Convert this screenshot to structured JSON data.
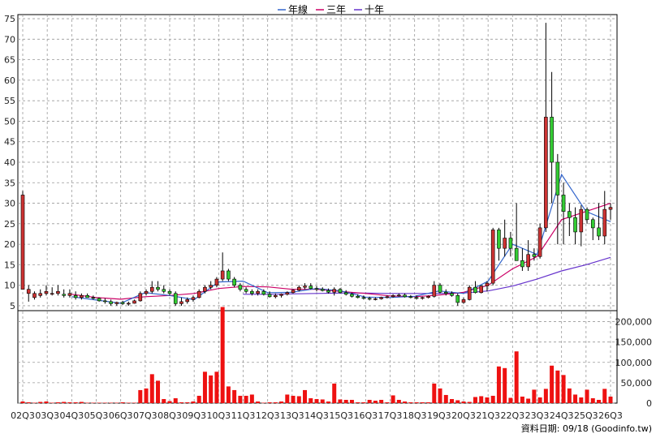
{
  "chart_data": [
    {
      "type": "candlestick",
      "legend": [
        "年線",
        "三年",
        "十年"
      ],
      "legend_position": "top-center",
      "grid": true,
      "ylim": [
        4,
        76
      ],
      "y_ticks": [
        5,
        10,
        15,
        20,
        25,
        30,
        35,
        40,
        45,
        50,
        55,
        60,
        65,
        70,
        75
      ],
      "x_ticks": [
        "02Q3",
        "03Q3",
        "04Q3",
        "05Q3",
        "06Q3",
        "07Q3",
        "08Q3",
        "09Q3",
        "10Q3",
        "11Q3",
        "12Q3",
        "13Q3",
        "14Q3",
        "15Q3",
        "16Q3",
        "17Q3",
        "18Q3",
        "19Q3",
        "20Q3",
        "21Q3",
        "22Q3",
        "23Q3",
        "24Q3",
        "25Q3",
        "26Q3"
      ],
      "ohlc": [
        [
          9,
          33,
          9,
          32
        ],
        [
          8,
          10,
          6,
          9
        ],
        [
          7,
          8.5,
          6.5,
          8
        ],
        [
          7.5,
          9,
          7,
          8
        ],
        [
          8,
          10,
          7.5,
          8.5
        ],
        [
          8,
          9.5,
          7.5,
          8
        ],
        [
          8,
          10,
          7.5,
          8.5
        ],
        [
          7.8,
          9,
          7,
          7.5
        ],
        [
          7.5,
          9,
          7,
          8
        ],
        [
          7.5,
          8.5,
          6.5,
          7
        ],
        [
          7,
          8,
          6.5,
          7.5
        ],
        [
          7.5,
          8,
          7,
          7
        ],
        [
          7,
          7.5,
          6.5,
          6.8
        ],
        [
          6.8,
          7,
          6,
          6.2
        ],
        [
          6.2,
          6.8,
          5.5,
          6
        ],
        [
          6,
          6.5,
          5,
          5.5
        ],
        [
          5.5,
          6,
          5,
          5.8
        ],
        [
          5.8,
          6.2,
          5.2,
          5.5
        ],
        [
          5.5,
          6,
          5,
          5.6
        ],
        [
          5.6,
          6.5,
          5.5,
          6.2
        ],
        [
          6.2,
          8.5,
          6,
          8
        ],
        [
          8,
          9,
          7.5,
          8.5
        ],
        [
          8.5,
          11,
          8,
          9.5
        ],
        [
          9.5,
          11,
          8.5,
          9
        ],
        [
          9,
          10,
          8,
          8.5
        ],
        [
          8.5,
          9,
          7.5,
          8
        ],
        [
          8,
          8.5,
          5,
          5.5
        ],
        [
          5.5,
          7,
          5,
          6
        ],
        [
          6,
          7,
          5.5,
          6.5
        ],
        [
          6.5,
          7.5,
          6,
          7
        ],
        [
          7,
          9,
          6.8,
          8.5
        ],
        [
          8.5,
          10,
          8,
          9.5
        ],
        [
          9.5,
          11,
          9,
          10
        ],
        [
          10,
          12,
          9.5,
          11.5
        ],
        [
          11.5,
          18,
          11,
          13.5
        ],
        [
          13.5,
          14,
          11,
          11.5
        ],
        [
          11.5,
          12,
          9.5,
          10
        ],
        [
          10,
          10.5,
          8.5,
          9
        ],
        [
          9,
          9.5,
          8,
          8.5
        ],
        [
          8.5,
          9,
          7.5,
          8
        ],
        [
          8,
          9,
          7.5,
          8.5
        ],
        [
          8.5,
          9,
          7.5,
          7.8
        ],
        [
          7.8,
          8.5,
          7,
          7.2
        ],
        [
          7.2,
          8,
          6.8,
          7.5
        ],
        [
          7.5,
          8,
          7,
          7.8
        ],
        [
          7.8,
          8.5,
          7.5,
          8.2
        ],
        [
          8.2,
          9,
          8,
          8.8
        ],
        [
          8.8,
          10,
          8.5,
          9.5
        ],
        [
          9.5,
          10.5,
          9,
          9.8
        ],
        [
          9.8,
          10.5,
          9,
          9.2
        ],
        [
          9.2,
          9.8,
          8.5,
          9
        ],
        [
          9,
          9.5,
          8.5,
          8.7
        ],
        [
          8.7,
          9.2,
          8,
          8.3
        ],
        [
          8.3,
          9.5,
          7.5,
          9
        ],
        [
          9,
          9.3,
          8,
          8.2
        ],
        [
          8.2,
          8.8,
          7.5,
          7.8
        ],
        [
          7.8,
          8.2,
          7,
          7.3
        ],
        [
          7.3,
          7.8,
          6.8,
          7
        ],
        [
          7,
          7.5,
          6.5,
          6.8
        ],
        [
          6.8,
          7.2,
          6.3,
          6.6
        ],
        [
          6.6,
          7,
          6.3,
          6.7
        ],
        [
          6.7,
          7.2,
          6.5,
          7
        ],
        [
          7,
          7.5,
          6.8,
          7.2
        ],
        [
          7.2,
          7.8,
          7,
          7.5
        ],
        [
          7.5,
          8,
          7.2,
          7.6
        ],
        [
          7.6,
          8,
          7,
          7.2
        ],
        [
          7.2,
          7.6,
          6.8,
          7
        ],
        [
          7,
          7.5,
          6.5,
          6.8
        ],
        [
          6.8,
          7.2,
          6.5,
          7
        ],
        [
          7,
          7.5,
          6.8,
          7.3
        ],
        [
          7.3,
          11,
          7,
          10
        ],
        [
          10,
          10.5,
          8,
          8.3
        ],
        [
          8.3,
          9,
          7.5,
          8
        ],
        [
          8,
          8.5,
          7.2,
          7.5
        ],
        [
          7.5,
          8,
          5,
          5.8
        ],
        [
          5.8,
          7,
          5.5,
          6.5
        ],
        [
          6.5,
          10,
          6.3,
          9.5
        ],
        [
          9.5,
          11,
          8,
          8.2
        ],
        [
          8.2,
          10,
          8,
          9.8
        ],
        [
          9.8,
          11,
          8.5,
          10.5
        ],
        [
          10.5,
          24,
          10,
          23.5
        ],
        [
          23.5,
          24,
          16,
          19
        ],
        [
          19,
          26,
          17,
          21.5
        ],
        [
          21.5,
          23,
          17,
          19
        ],
        [
          19,
          30,
          16,
          16
        ],
        [
          16,
          19,
          13.5,
          14.5
        ],
        [
          14.5,
          21,
          13.5,
          17.5
        ],
        [
          17.5,
          19,
          16,
          17
        ],
        [
          17,
          25,
          16.5,
          24
        ],
        [
          24,
          74,
          23,
          51
        ],
        [
          51,
          62,
          30,
          40
        ],
        [
          40,
          42,
          20,
          32
        ],
        [
          32,
          35,
          20,
          28
        ],
        [
          28,
          30,
          22,
          26.5
        ],
        [
          26.5,
          29,
          20,
          23
        ],
        [
          23,
          29.5,
          19.5,
          28.5
        ],
        [
          28.5,
          29,
          25,
          26
        ],
        [
          26,
          26.5,
          21,
          24
        ],
        [
          24,
          30,
          21,
          22
        ],
        [
          22,
          33,
          20,
          28.5
        ],
        [
          28.5,
          30,
          26,
          29
        ]
      ],
      "year_line": [
        [
          "02Q3",
          null
        ],
        [
          "04Q3",
          7.2
        ],
        [
          "05Q3",
          6.4
        ],
        [
          "06Q3",
          5.6
        ],
        [
          "07Q3",
          8.2
        ],
        [
          "08Q3",
          7.5
        ],
        [
          "09Q3",
          6.5
        ],
        [
          "10Q3",
          10.8
        ],
        [
          "11Q3",
          11
        ],
        [
          "12Q3",
          8.2
        ],
        [
          "13Q3",
          8.3
        ],
        [
          "14Q3",
          9.2
        ],
        [
          "15Q3",
          8.6
        ],
        [
          "16Q3",
          7.1
        ],
        [
          "17Q3",
          7
        ],
        [
          "18Q3",
          7.3
        ],
        [
          "19Q3",
          8.6
        ],
        [
          "20Q3",
          8
        ],
        [
          "21Q3",
          11
        ],
        [
          "22Q3",
          20
        ],
        [
          "23Q3",
          17.5
        ],
        [
          "24Q3",
          37
        ],
        [
          "25Q3",
          28
        ],
        [
          "26Q3",
          25.5
        ]
      ],
      "three_year_line": [
        [
          "04Q3",
          7.8
        ],
        [
          "05Q3",
          7
        ],
        [
          "06Q3",
          6.6
        ],
        [
          "07Q3",
          7.2
        ],
        [
          "08Q3",
          7.5
        ],
        [
          "09Q3",
          8
        ],
        [
          "10Q3",
          9.2
        ],
        [
          "11Q3",
          9.7
        ],
        [
          "12Q3",
          9.6
        ],
        [
          "13Q3",
          9
        ],
        [
          "14Q3",
          9
        ],
        [
          "15Q3",
          8.5
        ],
        [
          "16Q3",
          8
        ],
        [
          "17Q3",
          7.4
        ],
        [
          "18Q3",
          7.2
        ],
        [
          "19Q3",
          7.6
        ],
        [
          "20Q3",
          8.3
        ],
        [
          "21Q3",
          10
        ],
        [
          "22Q3",
          14
        ],
        [
          "23Q3",
          17
        ],
        [
          "24Q3",
          26
        ],
        [
          "25Q3",
          28
        ],
        [
          "26Q3",
          30
        ]
      ],
      "ten_year_line": [
        [
          "11Q3",
          7.8
        ],
        [
          "12Q3",
          7.8
        ],
        [
          "13Q3",
          7.9
        ],
        [
          "14Q3",
          8
        ],
        [
          "15Q3",
          8.1
        ],
        [
          "16Q3",
          8.1
        ],
        [
          "17Q3",
          8
        ],
        [
          "18Q3",
          8
        ],
        [
          "19Q3",
          8
        ],
        [
          "20Q3",
          8.1
        ],
        [
          "21Q3",
          8.6
        ],
        [
          "22Q3",
          9.8
        ],
        [
          "23Q3",
          11.5
        ],
        [
          "24Q3",
          13.5
        ],
        [
          "25Q3",
          15
        ],
        [
          "26Q3",
          16.8
        ]
      ],
      "colors": {
        "up": "#cc3333",
        "down": "#33cc33",
        "year_line": "#3366cc",
        "three_year_line": "#cc0066",
        "ten_year_line": "#6633cc",
        "grid": "#999999"
      }
    },
    {
      "type": "bar",
      "ylim": [
        0,
        225000
      ],
      "y_ticks": [
        "0",
        "50,000",
        "100,000",
        "150,000",
        "200,000"
      ],
      "y_tick_values": [
        0,
        50000,
        100000,
        150000,
        200000
      ],
      "values": [
        4000,
        2000,
        1000,
        3000,
        4000,
        1000,
        2000,
        3000,
        2000,
        2000,
        3000,
        1000,
        1000,
        1000,
        1000,
        1000,
        1000,
        2000,
        1000,
        1000,
        32000,
        36000,
        71000,
        55000,
        10000,
        5000,
        12000,
        2000,
        2000,
        4000,
        18000,
        77000,
        68000,
        77000,
        236000,
        41000,
        32000,
        18000,
        18000,
        21000,
        4000,
        1000,
        2000,
        2000,
        4000,
        21000,
        18000,
        17000,
        32000,
        12000,
        10000,
        9000,
        4000,
        48000,
        9000,
        8000,
        8000,
        2000,
        2000,
        8000,
        6000,
        8000,
        2000,
        19000,
        8000,
        4000,
        2000,
        2000,
        2000,
        2000,
        48000,
        36000,
        20000,
        10000,
        7000,
        4000,
        3000,
        15000,
        17000,
        14000,
        18000,
        90000,
        86000,
        13000,
        127000,
        16000,
        11000,
        33000,
        14000,
        35000,
        92000,
        80000,
        69000,
        36000,
        21000,
        14000,
        33000,
        12000,
        8000,
        35000,
        16000
      ],
      "color": "#ee1111"
    }
  ],
  "source_label": "資料日期: 09/18  (Goodinfo.tw)"
}
